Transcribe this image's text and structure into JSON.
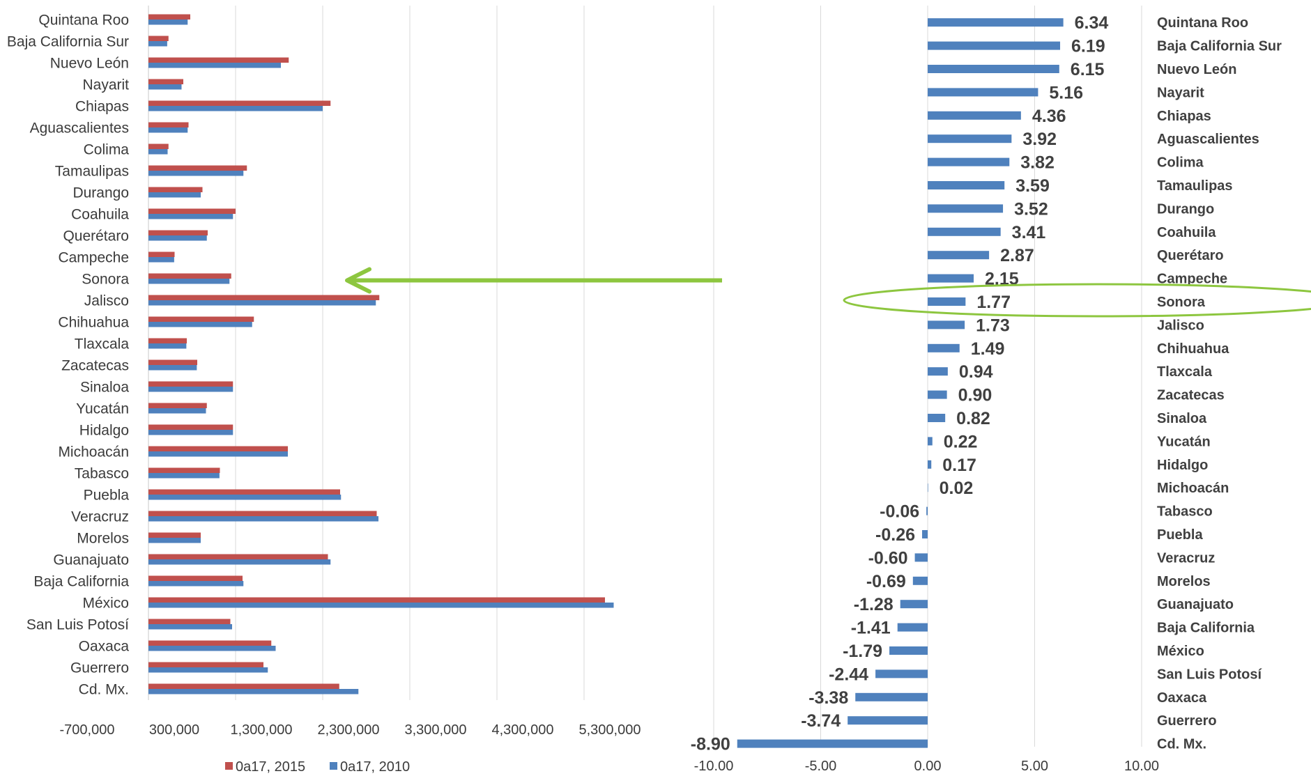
{
  "colors": {
    "series_2015": "#c0504d",
    "series_2010": "#4f81bd",
    "arrow": "#8dc63f",
    "ellipse": "#8dc63f",
    "grid": "#d9d9d9"
  },
  "chart_data": [
    {
      "type": "bar",
      "orientation": "horizontal",
      "categories": [
        "Quintana Roo",
        "Baja California Sur",
        "Nuevo León",
        "Nayarit",
        "Chiapas",
        "Aguascalientes",
        "Colima",
        "Tamaulipas",
        "Durango",
        "Coahuila",
        "Querétaro",
        "Campeche",
        "Sonora",
        "Jalisco",
        "Chihuahua",
        "Tlaxcala",
        "Zacatecas",
        "Sinaloa",
        "Yucatán",
        "Hidalgo",
        "Michoacán",
        "Tabasco",
        "Puebla",
        "Veracruz",
        "Morelos",
        "Guanajuato",
        "Baja California",
        "México",
        "San Luis Potosí",
        "Oaxaca",
        "Guerrero",
        "Cd. Mx."
      ],
      "series": [
        {
          "name": "0a17, 2015",
          "values": [
            480000,
            230000,
            1610000,
            400000,
            2090000,
            460000,
            230000,
            1130000,
            620000,
            1000000,
            680000,
            300000,
            950000,
            2650000,
            1210000,
            440000,
            560000,
            970000,
            670000,
            970000,
            1600000,
            820000,
            2200000,
            2620000,
            600000,
            2060000,
            1080000,
            5240000,
            940000,
            1410000,
            1320000,
            2190000
          ]
        },
        {
          "name": "0a17, 2010",
          "values": [
            450000,
            215000,
            1520000,
            380000,
            2000000,
            450000,
            220000,
            1090000,
            600000,
            970000,
            670000,
            295000,
            930000,
            2610000,
            1190000,
            435000,
            555000,
            970000,
            660000,
            970000,
            1600000,
            815000,
            2210000,
            2640000,
            600000,
            2090000,
            1090000,
            5340000,
            960000,
            1460000,
            1370000,
            2410000
          ]
        }
      ],
      "xlim": [
        -700000,
        5300000
      ],
      "x_ticks": [
        "-700,000",
        "300,000",
        "1,300,000",
        "2,300,000",
        "3,300,000",
        "4,300,000",
        "5,300,000"
      ],
      "legend_position": "bottom",
      "grid": true
    },
    {
      "type": "bar",
      "orientation": "horizontal",
      "categories": [
        "Quintana Roo",
        "Baja California Sur",
        "Nuevo León",
        "Nayarit",
        "Chiapas",
        "Aguascalientes",
        "Colima",
        "Tamaulipas",
        "Durango",
        "Coahuila",
        "Querétaro",
        "Campeche",
        "Sonora",
        "Jalisco",
        "Chihuahua",
        "Tlaxcala",
        "Zacatecas",
        "Sinaloa",
        "Yucatán",
        "Hidalgo",
        "Michoacán",
        "Tabasco",
        "Puebla",
        "Veracruz",
        "Morelos",
        "Guanajuato",
        "Baja California",
        "México",
        "San Luis Potosí",
        "Oaxaca",
        "Guerrero",
        "Cd. Mx."
      ],
      "values": [
        6.34,
        6.19,
        6.15,
        5.16,
        4.36,
        3.92,
        3.82,
        3.59,
        3.52,
        3.41,
        2.87,
        2.15,
        1.77,
        1.73,
        1.49,
        0.94,
        0.9,
        0.82,
        0.22,
        0.17,
        0.02,
        -0.06,
        -0.26,
        -0.6,
        -0.69,
        -1.28,
        -1.41,
        -1.79,
        -2.44,
        -3.38,
        -3.74,
        -8.9
      ],
      "value_labels": [
        "6.34",
        "6.19",
        "6.15",
        "5.16",
        "4.36",
        "3.92",
        "3.82",
        "3.59",
        "3.52",
        "3.41",
        "2.87",
        "2.15",
        "1.77",
        "1.73",
        "1.49",
        "0.94",
        "0.90",
        "0.82",
        "0.22",
        "0.17",
        "0.02",
        "-0.06",
        "-0.26",
        "-0.60",
        "-0.69",
        "-1.28",
        "-1.41",
        "-1.79",
        "-2.44",
        "-3.38",
        "-3.74",
        "-8.90"
      ],
      "xlim": [
        -10,
        10
      ],
      "x_ticks": [
        "-10.00",
        "-5.00",
        "0.00",
        "5.00",
        "10.00"
      ],
      "highlight_category": "Sonora",
      "grid": true
    }
  ]
}
